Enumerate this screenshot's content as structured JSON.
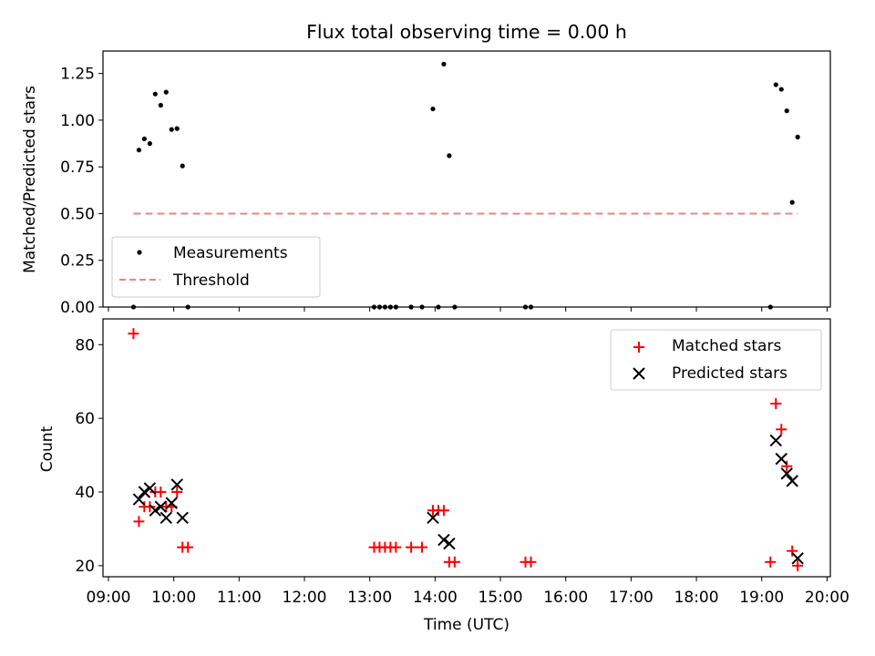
{
  "title": "Flux total observing time = 0.00 h",
  "x_tick_labels": [
    "09:00",
    "10:00",
    "11:00",
    "12:00",
    "13:00",
    "14:00",
    "15:00",
    "16:00",
    "17:00",
    "18:00",
    "19:00",
    "20:00"
  ],
  "xlabel": "Time (UTC)",
  "chart_data": [
    {
      "type": "scatter",
      "ylabel": "Matched/Predicted stars",
      "xlim": [
        "08:55",
        "20:03"
      ],
      "ylim": [
        0,
        1.37
      ],
      "y_ticks": [
        "0.00",
        "0.25",
        "0.50",
        "0.75",
        "1.00",
        "1.25"
      ],
      "grid": false,
      "legend_position": "lower-left",
      "series": [
        {
          "name": "Measurements",
          "color": "#000000",
          "marker": "dot",
          "points": [
            [
              "09:23",
              0
            ],
            [
              "09:28",
              0.84
            ],
            [
              "09:33",
              0.9
            ],
            [
              "09:38",
              0.875
            ],
            [
              "09:43",
              1.14
            ],
            [
              "09:48",
              1.08
            ],
            [
              "09:53",
              1.15
            ],
            [
              "09:58",
              0.95
            ],
            [
              "10:03",
              0.955
            ],
            [
              "10:08",
              0.755
            ],
            [
              "10:13",
              0
            ],
            [
              "13:04",
              0
            ],
            [
              "13:09",
              0
            ],
            [
              "13:14",
              0
            ],
            [
              "13:19",
              0
            ],
            [
              "13:24",
              0
            ],
            [
              "13:38",
              0
            ],
            [
              "13:48",
              0
            ],
            [
              "13:58",
              1.06
            ],
            [
              "14:03",
              0
            ],
            [
              "14:08",
              1.3
            ],
            [
              "14:13",
              0.81
            ],
            [
              "14:18",
              0
            ],
            [
              "15:23",
              0
            ],
            [
              "15:28",
              0
            ],
            [
              "19:08",
              0
            ],
            [
              "19:13",
              1.19
            ],
            [
              "19:18",
              1.165
            ],
            [
              "19:23",
              1.05
            ],
            [
              "19:28",
              0.56
            ],
            [
              "19:33",
              0.91
            ]
          ]
        },
        {
          "name": "Threshold",
          "color": "#f08080",
          "line_style": "dashed",
          "points": [
            [
              "09:23",
              0.5
            ],
            [
              "19:33",
              0.5
            ]
          ]
        }
      ]
    },
    {
      "type": "scatter",
      "ylabel": "Count",
      "xlim": [
        "08:55",
        "20:03"
      ],
      "ylim": [
        17,
        87
      ],
      "y_ticks": [
        "20",
        "40",
        "60",
        "80"
      ],
      "grid": false,
      "legend_position": "upper-right",
      "series": [
        {
          "name": "Matched stars",
          "color": "#ff0000",
          "marker": "plus",
          "points": [
            [
              "09:23",
              83
            ],
            [
              "09:28",
              32
            ],
            [
              "09:33",
              36
            ],
            [
              "09:38",
              36
            ],
            [
              "09:43",
              40
            ],
            [
              "09:48",
              40
            ],
            [
              "09:53",
              36
            ],
            [
              "09:58",
              36
            ],
            [
              "10:03",
              40
            ],
            [
              "10:08",
              25
            ],
            [
              "10:13",
              25
            ],
            [
              "13:04",
              25
            ],
            [
              "13:09",
              25
            ],
            [
              "13:14",
              25
            ],
            [
              "13:19",
              25
            ],
            [
              "13:24",
              25
            ],
            [
              "13:38",
              25
            ],
            [
              "13:48",
              25
            ],
            [
              "13:58",
              35
            ],
            [
              "14:03",
              35
            ],
            [
              "14:08",
              35
            ],
            [
              "14:13",
              21
            ],
            [
              "14:18",
              21
            ],
            [
              "15:23",
              21
            ],
            [
              "15:28",
              21
            ],
            [
              "19:08",
              21
            ],
            [
              "19:13",
              64
            ],
            [
              "19:18",
              57
            ],
            [
              "19:23",
              47
            ],
            [
              "19:28",
              24
            ],
            [
              "19:33",
              20
            ]
          ]
        },
        {
          "name": "Predicted stars",
          "color": "#000000",
          "marker": "x",
          "points": [
            [
              "09:28",
              38
            ],
            [
              "09:33",
              40
            ],
            [
              "09:38",
              41
            ],
            [
              "09:43",
              35
            ],
            [
              "09:48",
              36
            ],
            [
              "09:53",
              33
            ],
            [
              "09:58",
              37
            ],
            [
              "10:03",
              42
            ],
            [
              "10:08",
              33
            ],
            [
              "13:58",
              33
            ],
            [
              "14:08",
              27
            ],
            [
              "14:13",
              26
            ],
            [
              "19:13",
              54
            ],
            [
              "19:18",
              49
            ],
            [
              "19:23",
              45
            ],
            [
              "19:28",
              43
            ],
            [
              "19:33",
              22
            ]
          ]
        }
      ]
    }
  ]
}
